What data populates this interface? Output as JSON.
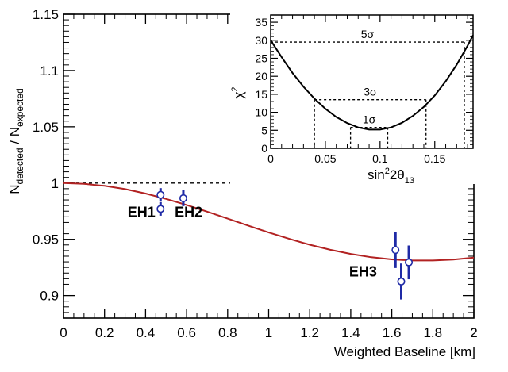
{
  "chart_data": [
    {
      "type": "scatter",
      "xlabel": "Weighted Baseline [km]",
      "ylabel": {
        "main1": "N",
        "sub1": "detected",
        "sep": " / N",
        "sub2": "expected"
      },
      "xlim": [
        0,
        2
      ],
      "ylim": [
        0.88,
        1.15
      ],
      "xticks": [
        "0",
        "0.2",
        "0.4",
        "0.6",
        "0.8",
        "1",
        "1.2",
        "1.4",
        "1.6",
        "1.8",
        "2"
      ],
      "yticks": [
        "0.9",
        "0.95",
        "1",
        "1.05",
        "1.1",
        "1.15"
      ],
      "reference_line": {
        "y": 1.0,
        "style": "dashed"
      },
      "curve": {
        "color": "#b22222",
        "x": [
          0,
          0.1,
          0.2,
          0.3,
          0.4,
          0.5,
          0.6,
          0.7,
          0.8,
          0.9,
          1.0,
          1.1,
          1.2,
          1.3,
          1.4,
          1.5,
          1.6,
          1.7,
          1.8,
          1.9,
          2.0
        ],
        "y": [
          1.0,
          0.9993,
          0.9975,
          0.9946,
          0.9907,
          0.9859,
          0.9805,
          0.9746,
          0.9684,
          0.9622,
          0.9561,
          0.9504,
          0.9452,
          0.9407,
          0.937,
          0.9341,
          0.9322,
          0.9312,
          0.9312,
          0.932,
          0.9337
        ]
      },
      "points": [
        {
          "x": 0.473,
          "y": 0.9895,
          "err": 0.006
        },
        {
          "x": 0.473,
          "y": 0.977,
          "err": 0.006
        },
        {
          "x": 0.584,
          "y": 0.9865,
          "err": 0.007
        },
        {
          "x": 1.618,
          "y": 0.9405,
          "err": 0.016
        },
        {
          "x": 1.646,
          "y": 0.9125,
          "err": 0.016
        },
        {
          "x": 1.683,
          "y": 0.9295,
          "err": 0.015
        }
      ],
      "point_color": "#1f2aa6",
      "annotations": [
        {
          "text": "EH1",
          "x": 0.38,
          "y": 0.97
        },
        {
          "text": "EH2",
          "x": 0.61,
          "y": 0.97
        },
        {
          "text": "EH3",
          "x": 1.46,
          "y": 0.917
        }
      ]
    },
    {
      "type": "line",
      "xlabel": {
        "pre": "sin",
        "sup1": "2",
        "mid": "2θ",
        "sub": "13"
      },
      "ylabel": {
        "main": "χ",
        "sup": "2"
      },
      "xlim": [
        0,
        0.185
      ],
      "ylim": [
        0,
        37
      ],
      "xticks": [
        {
          "v": 0,
          "t": "0"
        },
        {
          "v": 0.05,
          "t": "0.05"
        },
        {
          "v": 0.1,
          "t": "0.1"
        },
        {
          "v": 0.15,
          "t": "0.15"
        }
      ],
      "yticks": [
        "0",
        "5",
        "10",
        "15",
        "20",
        "25",
        "30",
        "35"
      ],
      "curve": {
        "x": [
          0,
          0.01,
          0.02,
          0.03,
          0.04,
          0.05,
          0.06,
          0.07,
          0.08,
          0.09,
          0.1,
          0.11,
          0.12,
          0.13,
          0.14,
          0.15,
          0.16,
          0.17,
          0.18,
          0.185
        ],
        "y": [
          30.0,
          25.3,
          20.9,
          17.1,
          13.8,
          11.0,
          8.7,
          7.0,
          5.8,
          5.2,
          5.2,
          5.8,
          7.1,
          9.0,
          11.5,
          14.7,
          18.6,
          23.2,
          28.5,
          31.4
        ]
      },
      "levels": [
        {
          "label": "5σ",
          "y": 29.5,
          "x1": 0.0,
          "x2": 0.177
        },
        {
          "label": "3σ",
          "y": 13.5,
          "x1": 0.04,
          "x2": 0.142
        },
        {
          "label": "1σ",
          "y": 5.8,
          "x1": 0.073,
          "x2": 0.107
        }
      ]
    }
  ]
}
